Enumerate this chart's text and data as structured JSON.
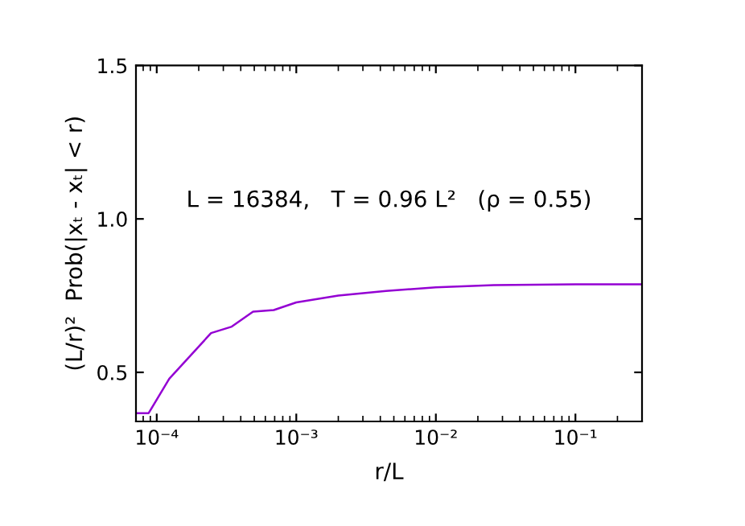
{
  "chart_data": {
    "type": "line",
    "xlabel": "r/L",
    "ylabel": "(L/r)²  Prob(|xₜ - xₜ| < r)",
    "annotations": [
      "L = 16384,   T = 0.96 L²   (ρ = 0.55)"
    ],
    "log": "x",
    "xlim": [
      7.1e-05,
      0.3
    ],
    "ylim": [
      0.34,
      1.5
    ],
    "xticks": [
      {
        "value": 0.0001,
        "label": "10⁻⁴"
      },
      {
        "value": 0.001,
        "label": "10⁻³"
      },
      {
        "value": 0.01,
        "label": "10⁻²"
      },
      {
        "value": 0.1,
        "label": "10⁻¹"
      }
    ],
    "yticks": [
      {
        "value": 0.5,
        "label": "0.5"
      },
      {
        "value": 1.0,
        "label": "1.0"
      },
      {
        "value": 1.5,
        "label": "1.5"
      }
    ],
    "grid": false,
    "legend": false,
    "marker": "none",
    "line_style": "solid",
    "x": [
      7.1e-05,
      8.75e-05,
      0.000123,
      0.000245,
      0.000345,
      0.00049,
      0.00069,
      0.001,
      0.002,
      0.0044,
      0.01,
      0.026,
      0.1,
      0.3
    ],
    "series": [
      {
        "color": "#9400d3",
        "values": [
          0.367,
          0.367,
          0.479,
          0.628,
          0.649,
          0.698,
          0.703,
          0.728,
          0.75,
          0.765,
          0.777,
          0.784,
          0.787,
          0.787
        ]
      }
    ]
  }
}
